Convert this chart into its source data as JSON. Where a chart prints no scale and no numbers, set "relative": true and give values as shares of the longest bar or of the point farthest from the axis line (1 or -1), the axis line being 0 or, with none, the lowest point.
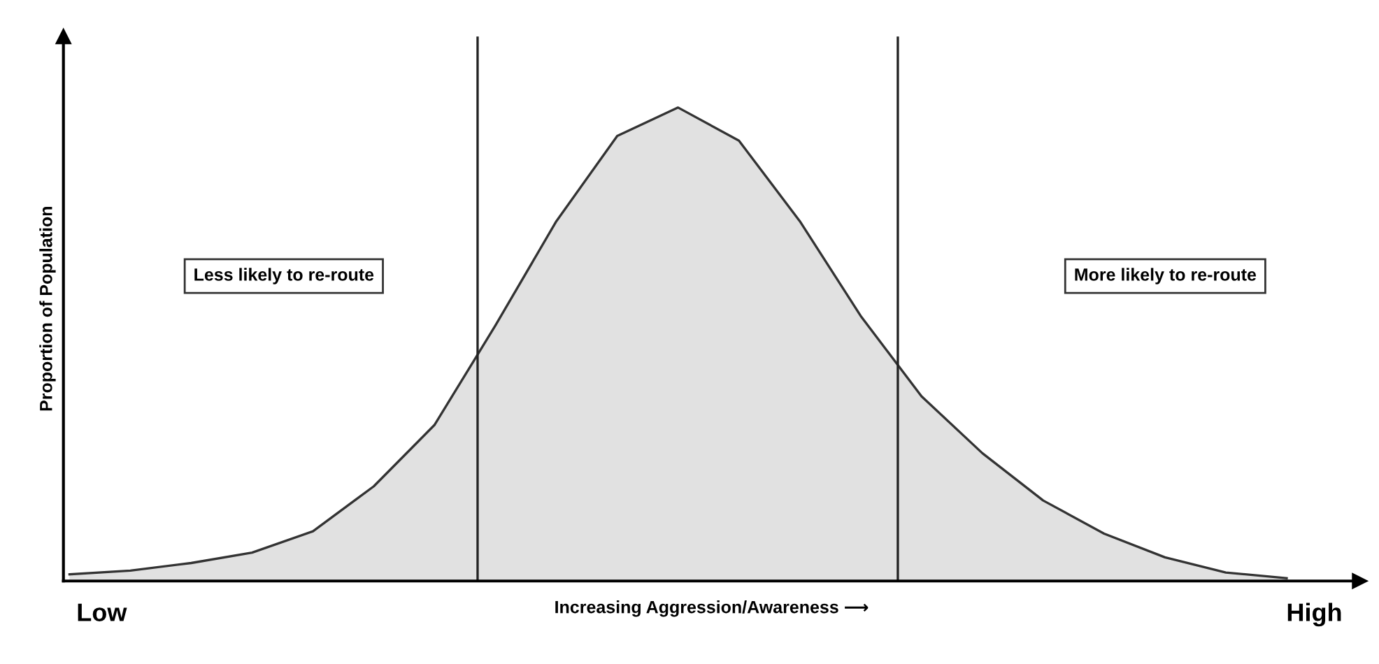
{
  "chart_data": {
    "type": "area",
    "relative": true,
    "xlabel": "Increasing Aggression/Awareness ⟶",
    "ylabel": "Proportion of Population",
    "categories": [
      null,
      null,
      null,
      null,
      null,
      null,
      null,
      null,
      null,
      null,
      null,
      null,
      null,
      null,
      null,
      null,
      null,
      null,
      null,
      null,
      null
    ],
    "series": [
      {
        "color": "#333333",
        "values": [
          0.014,
          0.022,
          0.038,
          0.06,
          0.105,
          0.2,
          0.33,
          0.54,
          0.76,
          0.94,
          1,
          0.93,
          0.76,
          0.56,
          0.39,
          0.27,
          0.17,
          0.1,
          0.05,
          0.018,
          0.006
        ]
      }
    ],
    "annotations": [
      "Less likely to re-route",
      "More likely to re-route",
      "Low",
      "High"
    ]
  }
}
